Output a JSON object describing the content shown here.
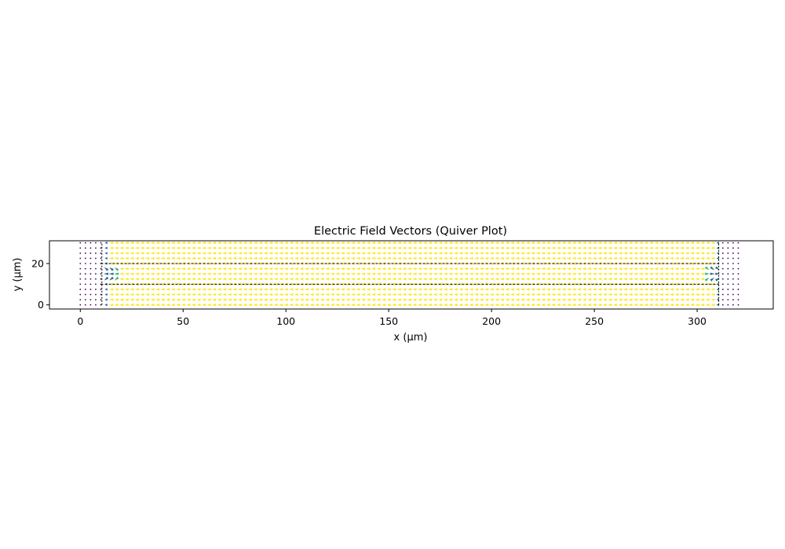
{
  "chart_data": {
    "type": "quiver",
    "title": "Electric Field Vectors (Quiver Plot)",
    "xlabel": "x (µm)",
    "ylabel": "y (µm)",
    "xlim": [
      -15,
      337
    ],
    "ylim": [
      -2,
      31
    ],
    "xticks": [
      0,
      50,
      100,
      150,
      200,
      250,
      300
    ],
    "yticks": [
      0,
      20
    ],
    "grid": false,
    "legend": "none",
    "colormap": "viridis",
    "grid_spacing": 2.5,
    "x_range": [
      0,
      320
    ],
    "y_range": [
      0,
      30
    ],
    "field": {
      "outer_region_color": "#440154",
      "inner_region_color": "#fde725",
      "edge_color": "#31688e",
      "transition_color": "#35b779",
      "inner_x_range": [
        12.5,
        310
      ],
      "direction": "pointing left (-x) between electrodes, fringing near x≈12 and x≈310 around y≈15"
    },
    "electrode_lines": [
      {
        "y": 20,
        "x_start": 10,
        "x_end": 310,
        "style": "dashed",
        "color": "#000000"
      },
      {
        "y": 10,
        "x_start": 10,
        "x_end": 310,
        "style": "dashed",
        "color": "#000000"
      }
    ],
    "electrode_edges": [
      {
        "x": 10.5,
        "y_start": 0,
        "y_end": 30
      },
      {
        "x": 310.5,
        "y_start": 0,
        "y_end": 30
      }
    ]
  }
}
